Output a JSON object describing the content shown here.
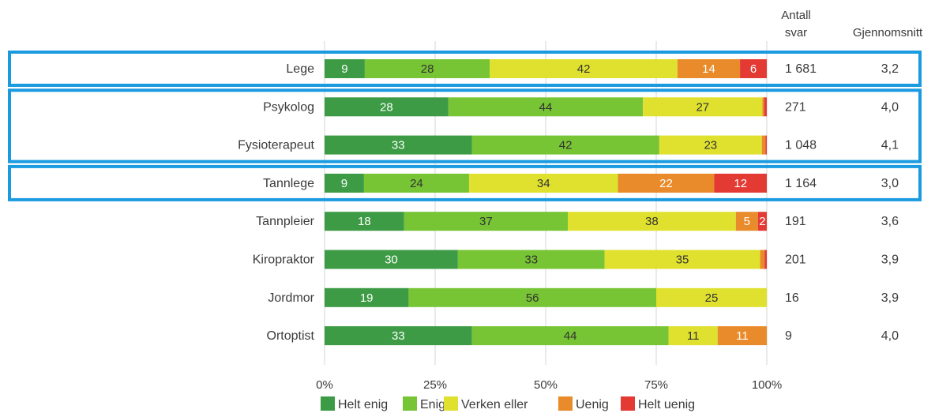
{
  "chart_data": {
    "type": "bar",
    "stacked": true,
    "orientation": "horizontal",
    "categories": [
      "Lege",
      "Psykolog",
      "Fysioterapeut",
      "Tannlege",
      "Tannpleier",
      "Kiropraktor",
      "Jordmor",
      "Ortoptist"
    ],
    "series": [
      {
        "name": "Helt enig",
        "color": "#3c9b44",
        "values": [
          9,
          28,
          33,
          9,
          18,
          30,
          19,
          33
        ]
      },
      {
        "name": "Enig",
        "color": "#77c435",
        "values": [
          28,
          44,
          42,
          24,
          37,
          33,
          56,
          44
        ]
      },
      {
        "name": "Verken eller",
        "color": "#dfe12e",
        "values": [
          42,
          27,
          23,
          34,
          38,
          35,
          25,
          11
        ]
      },
      {
        "name": "Uenig",
        "color": "#e98b2a",
        "values": [
          14,
          0.4,
          0.8,
          22,
          5,
          1,
          0,
          11
        ]
      },
      {
        "name": "Helt uenig",
        "color": "#e33a34",
        "values": [
          6,
          0.6,
          0.3,
          12,
          2,
          0.5,
          0,
          0
        ]
      }
    ],
    "data_labels": [
      [
        "9",
        "28",
        "42",
        "14",
        "6"
      ],
      [
        "28",
        "44",
        "27",
        "",
        ""
      ],
      [
        "33",
        "42",
        "23",
        "",
        ""
      ],
      [
        "9",
        "24",
        "34",
        "22",
        "12"
      ],
      [
        "18",
        "37",
        "38",
        "5",
        "2"
      ],
      [
        "30",
        "33",
        "35",
        "",
        ""
      ],
      [
        "19",
        "56",
        "25",
        "",
        ""
      ],
      [
        "33",
        "44",
        "11",
        "11",
        ""
      ]
    ],
    "xlim": [
      0,
      100
    ],
    "x_ticks": [
      "0%",
      "25%",
      "50%",
      "75%",
      "100%"
    ],
    "grid": true,
    "legend_position": "bottom",
    "table_columns": {
      "antall_header_line1": "Antall",
      "antall_header_line2": "svar",
      "gjennomsnitt_header": "Gjennomsnitt",
      "antall_svar": [
        "1 681",
        "271",
        "1 048",
        "1 164",
        "191",
        "201",
        "16",
        "9"
      ],
      "gjennomsnitt": [
        "3,2",
        "4,0",
        "4,1",
        "3,0",
        "3,6",
        "3,9",
        "3,9",
        "4,0"
      ]
    },
    "highlight_groups": [
      [
        0
      ],
      [
        1,
        2
      ],
      [
        3
      ]
    ],
    "highlight_color": "#1a9be0"
  }
}
